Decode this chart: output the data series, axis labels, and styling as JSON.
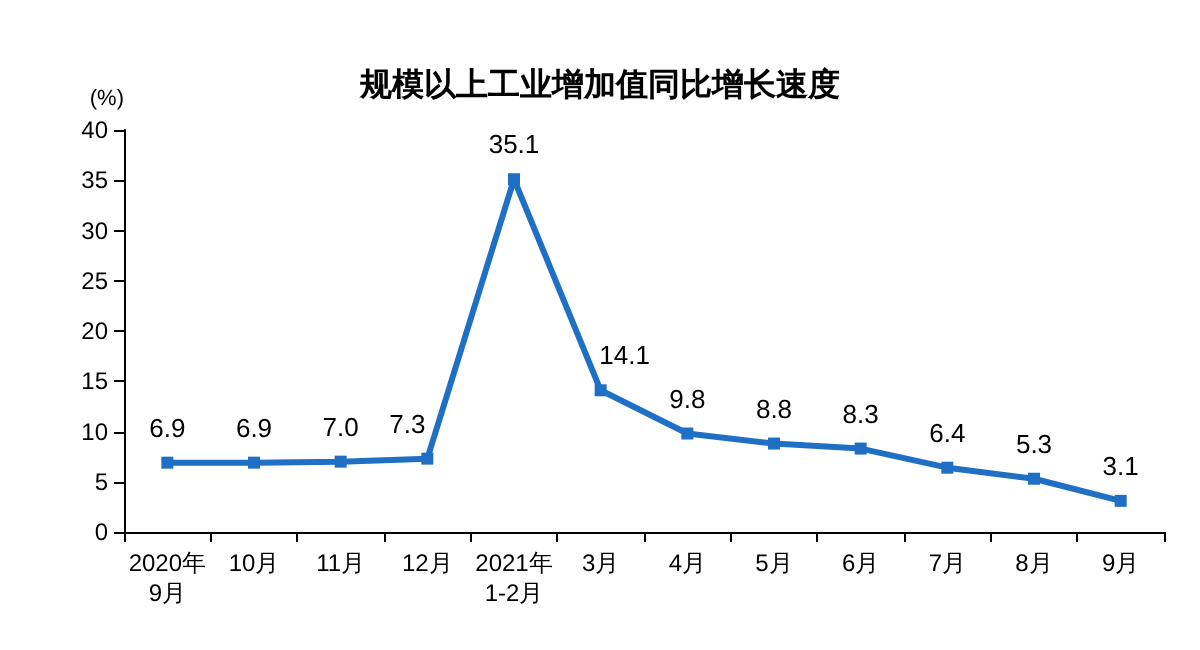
{
  "chart_data": {
    "type": "line",
    "title": "规模以上工业增加值同比增长速度",
    "ylabel": "(%)",
    "categories": [
      "2020年\n9月",
      "10月",
      "11月",
      "12月",
      "2021年\n1-2月",
      "3月",
      "4月",
      "5月",
      "6月",
      "7月",
      "8月",
      "9月"
    ],
    "series": [
      {
        "color": "#1f6fc5",
        "values": [
          6.9,
          6.9,
          7.0,
          7.3,
          35.1,
          14.1,
          9.8,
          8.8,
          8.3,
          6.4,
          5.3,
          3.1
        ]
      }
    ],
    "ylim": [
      0,
      40
    ],
    "yticks": [
      0,
      5,
      10,
      15,
      20,
      25,
      30,
      35,
      40
    ],
    "value_labels": [
      "6.9",
      "6.9",
      "7.0",
      "7.3",
      "35.1",
      "14.1",
      "9.8",
      "8.8",
      "8.3",
      "6.4",
      "5.3",
      "3.1"
    ],
    "grid": false,
    "marker": "square",
    "line_style": "solid"
  }
}
